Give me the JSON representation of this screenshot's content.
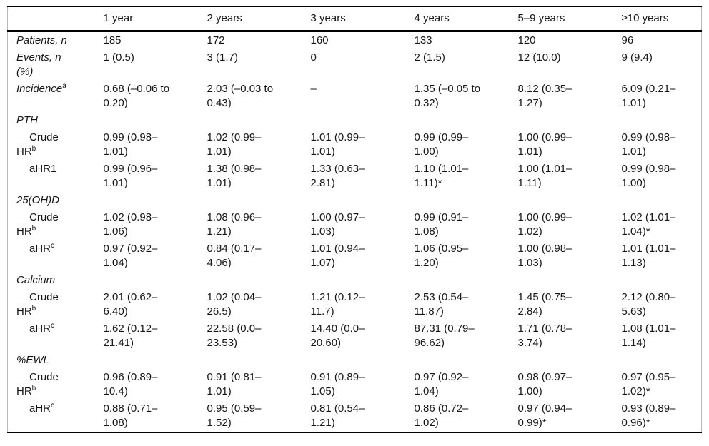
{
  "table": {
    "columns": [
      "",
      "1 year",
      "2 years",
      "3 years",
      "4 years",
      "5–9 years",
      "≥10 years"
    ],
    "rows": [
      {
        "type": "stat",
        "label": "Patients, n",
        "values": [
          "185",
          "172",
          "160",
          "133",
          "120",
          "96"
        ]
      },
      {
        "type": "stat",
        "label": "Events, n (%)",
        "values": [
          "1 (0.5)",
          "3 (1.7)",
          "0",
          "2 (1.5)",
          "12 (10.0)",
          "9 (9.4)"
        ]
      },
      {
        "type": "stat",
        "label": "Incidence",
        "label_sup": "a",
        "values": [
          "0.68 (–0.06 to 0.20)",
          "2.03 (–0.03 to 0.43)",
          "–",
          "1.35 (–0.05 to 0.32)",
          "8.12 (0.35–1.27)",
          "6.09 (0.21–1.01)"
        ]
      },
      {
        "type": "section",
        "label": "PTH",
        "values": [
          "",
          "",
          "",
          "",
          "",
          ""
        ]
      },
      {
        "type": "sub",
        "label": "Crude HR",
        "label_sup": "b",
        "values": [
          "0.99 (0.98–1.01)",
          "1.02 (0.99–1.01)",
          "1.01 (0.99–1.01)",
          "0.99 (0.99–1.00)",
          "1.00 (0.99–1.01)",
          "0.99 (0.98–1.01)"
        ]
      },
      {
        "type": "sub",
        "label": "aHR1",
        "values": [
          "0.99 (0.96–1.01)",
          "1.38 (0.98–1.01)",
          "1.33 (0.63–2.81)",
          "1.10 (1.01–1.11)*",
          "1.00 (1.01–1.11)",
          "0.99 (0.98–1.00)"
        ]
      },
      {
        "type": "section",
        "label": "25(OH)D",
        "values": [
          "",
          "",
          "",
          "",
          "",
          ""
        ]
      },
      {
        "type": "sub",
        "label": "Crude HR",
        "label_sup": "b",
        "values": [
          "1.02 (0.98–1.06)",
          "1.08 (0.96–1.21)",
          "1.00 (0.97–1.03)",
          "0.99 (0.91–1.08)",
          "1.00 (0.99–1.02)",
          "1.02 (1.01–1.04)*"
        ]
      },
      {
        "type": "sub",
        "label": "aHR",
        "label_sup": "c",
        "values": [
          "0.97 (0.92–1.04)",
          "0.84 (0.17–4.06)",
          "1.01 (0.94–1.07)",
          "1.06 (0.95–1.20)",
          "1.00 (0.98–1.03)",
          "1.01 (1.01–1.13)"
        ]
      },
      {
        "type": "section",
        "label": "Calcium",
        "values": [
          "",
          "",
          "",
          "",
          "",
          ""
        ]
      },
      {
        "type": "sub",
        "label": "Crude HR",
        "label_sup": "b",
        "values": [
          "2.01 (0.62–6.40)",
          "1.02 (0.04–26.5)",
          "1.21 (0.12–11.7)",
          "2.53 (0.54–11.87)",
          "1.45 (0.75–2.84)",
          "2.12 (0.80–5.63)"
        ]
      },
      {
        "type": "sub",
        "label": "aHR",
        "label_sup": "c",
        "values": [
          "1.62 (0.12–21.41)",
          "22.58 (0.0–23.53)",
          "14.40 (0.0–20.60)",
          "87.31 (0.79–96.62)",
          "1.71 (0.78–3.74)",
          "1.08 (1.01–1.14)"
        ]
      },
      {
        "type": "section",
        "label": "%EWL",
        "values": [
          "",
          "",
          "",
          "",
          "",
          ""
        ]
      },
      {
        "type": "sub",
        "label": "Crude HR",
        "label_sup": "b",
        "values": [
          "0.96 (0.89–10.4)",
          "0.91 (0.81–1.01)",
          "0.91 (0.89–1.05)",
          "0.97 (0.92–1.04)",
          "0.98 (0.97–1.00)",
          "0.97 (0.95–1.02)*"
        ]
      },
      {
        "type": "sub",
        "label": "aHR",
        "label_sup": "c",
        "values": [
          "0.88 (0.71–1.08)",
          "0.95 (0.59–1.52)",
          "0.81 (0.54–1.21)",
          "0.86 (0.72–1.02)",
          "0.97 (0.94–0.99)*",
          "0.93 (0.89–0.96)*"
        ]
      }
    ],
    "colors": {
      "rule": "#000000",
      "frame": "#b9b9b9",
      "text": "#161616",
      "background": "#ffffff"
    }
  }
}
